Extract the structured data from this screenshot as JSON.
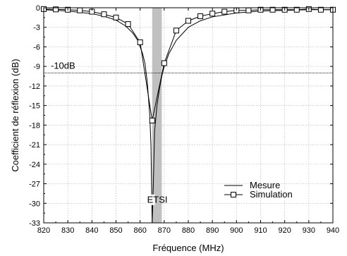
{
  "chart_data": {
    "type": "line",
    "xlabel": "Fréquence (MHz)",
    "ylabel": "Coefficient de réflexion (dB)",
    "xlim": [
      820,
      940
    ],
    "ylim": [
      -33,
      0
    ],
    "x_ticks": [
      820,
      830,
      840,
      850,
      860,
      870,
      880,
      890,
      900,
      910,
      920,
      930,
      940
    ],
    "y_ticks": [
      0,
      -3,
      -6,
      -9,
      -12,
      -15,
      -18,
      -21,
      -24,
      -27,
      -30,
      -33
    ],
    "grid": true,
    "legend_position": "bottom-right",
    "series": [
      {
        "name": "Mesure",
        "marker": "none",
        "color": "#000000",
        "x": [
          820,
          830,
          840,
          845,
          850,
          854,
          857,
          859,
          861,
          862,
          863,
          864,
          864.5,
          865,
          865.5,
          866,
          867,
          868,
          869,
          870,
          872,
          875,
          880,
          885,
          890,
          900,
          910,
          920,
          930,
          940
        ],
        "y": [
          -0.3,
          -0.5,
          -0.9,
          -1.3,
          -1.9,
          -2.8,
          -3.9,
          -5.0,
          -7.0,
          -8.5,
          -11.5,
          -16.5,
          -21.0,
          -33.0,
          -27.0,
          -19.0,
          -15.0,
          -12.5,
          -10.5,
          -9.0,
          -7.0,
          -5.0,
          -3.0,
          -2.0,
          -1.4,
          -0.8,
          -0.5,
          -0.4,
          -0.3,
          -0.3
        ]
      },
      {
        "name": "Simulation",
        "marker": "square",
        "color": "#000000",
        "x": [
          820,
          825,
          830,
          835,
          840,
          845,
          850,
          855,
          860,
          865,
          870,
          875,
          880,
          885,
          890,
          895,
          900,
          905,
          910,
          915,
          920,
          925,
          930,
          935,
          940
        ],
        "y": [
          -0.2,
          -0.25,
          -0.3,
          -0.4,
          -0.6,
          -1.0,
          -1.5,
          -2.5,
          -5.3,
          -17.3,
          -8.5,
          -3.5,
          -2.0,
          -1.3,
          -0.9,
          -0.6,
          -0.4,
          -0.4,
          -0.3,
          -0.3,
          -0.3,
          -0.3,
          -0.2,
          -0.3,
          -0.3
        ]
      }
    ],
    "threshold": {
      "y": -10,
      "label": "-10dB"
    },
    "band": {
      "x_start": 865,
      "x_end": 869,
      "color": "#c0c0c0",
      "label": "ETSI"
    }
  }
}
